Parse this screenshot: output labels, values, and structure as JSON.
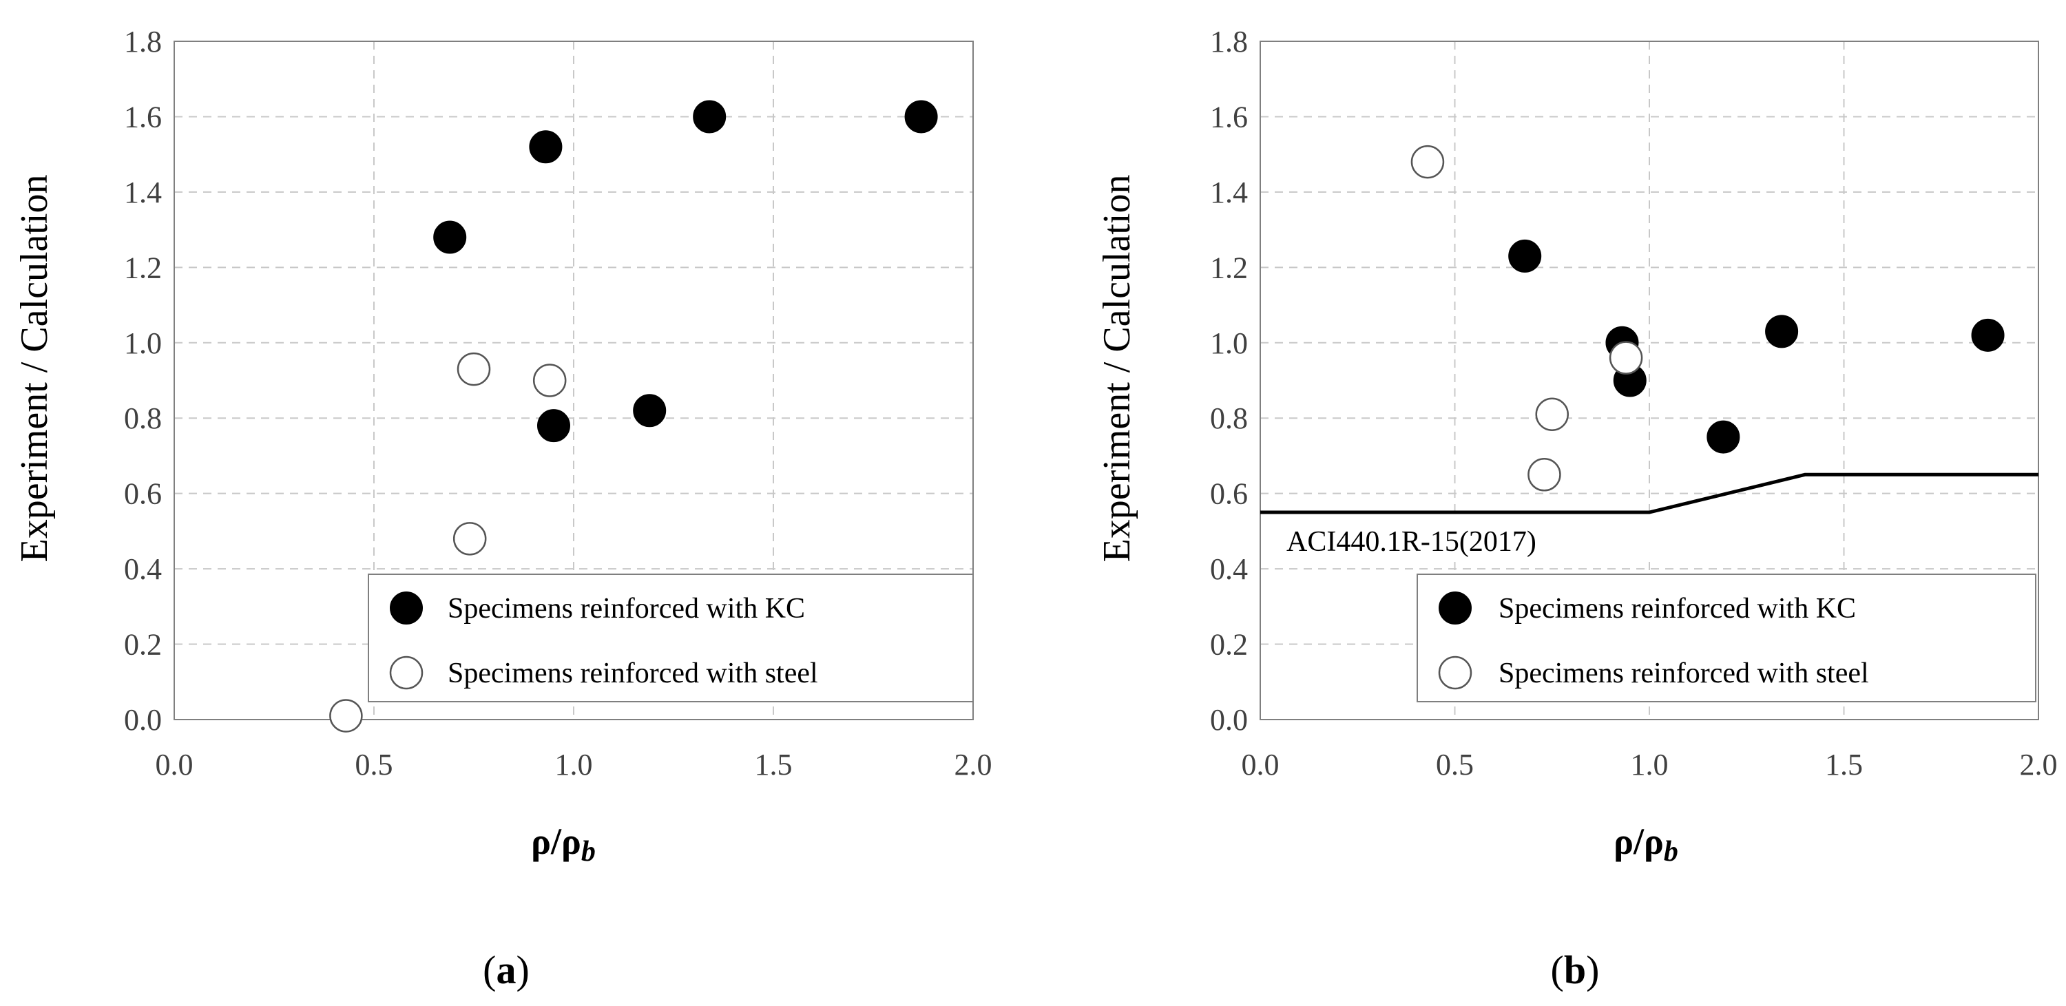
{
  "chart_data": [
    {
      "type": "scatter",
      "panel_label": "(a)",
      "ylabel": "Experiment  / Calculation",
      "xlabel_main": "ρ/ρ",
      "xlabel_sub": "b",
      "xlim": [
        0.0,
        2.0
      ],
      "ylim": [
        0.0,
        1.8
      ],
      "xticks": [
        "0.0",
        "0.5",
        "1.0",
        "1.5",
        "2.0"
      ],
      "yticks": [
        "0.0",
        "0.2",
        "0.4",
        "0.6",
        "0.8",
        "1.0",
        "1.2",
        "1.4",
        "1.6",
        "1.8"
      ],
      "grid": true,
      "legend_position": "bottom-right",
      "series": [
        {
          "name": "Specimens reinforced with KC",
          "marker": "filled",
          "x": [
            0.69,
            0.93,
            0.95,
            1.19,
            1.34,
            1.87
          ],
          "y": [
            1.28,
            1.52,
            0.78,
            0.82,
            1.6,
            1.6
          ]
        },
        {
          "name": "Specimens reinforced with steel",
          "marker": "open",
          "x": [
            0.43,
            0.74,
            0.75,
            0.94
          ],
          "y": [
            0.01,
            0.48,
            0.93,
            0.9
          ]
        }
      ]
    },
    {
      "type": "scatter",
      "panel_label": "(b)",
      "ylabel": "Experiment  / Calculation",
      "xlabel_main": "ρ/ρ",
      "xlabel_sub": "b",
      "xlim": [
        0.0,
        2.0
      ],
      "ylim": [
        0.0,
        1.8
      ],
      "xticks": [
        "0.0",
        "0.5",
        "1.0",
        "1.5",
        "2.0"
      ],
      "yticks": [
        "0.0",
        "0.2",
        "0.4",
        "0.6",
        "0.8",
        "1.0",
        "1.2",
        "1.4",
        "1.6",
        "1.8"
      ],
      "grid": true,
      "legend_position": "bottom-right",
      "series": [
        {
          "name": "Specimens reinforced with KC",
          "marker": "filled",
          "x": [
            0.68,
            0.93,
            0.95,
            1.19,
            1.34,
            1.87
          ],
          "y": [
            1.23,
            1.0,
            0.9,
            0.75,
            1.03,
            1.02
          ]
        },
        {
          "name": "Specimens reinforced with steel",
          "marker": "open",
          "x": [
            0.43,
            0.73,
            0.75,
            0.94
          ],
          "y": [
            1.48,
            0.65,
            0.81,
            0.96
          ]
        }
      ],
      "reference_line": {
        "label": "ACI440.1R-15(2017)",
        "x": [
          0.0,
          1.0,
          1.4,
          2.0
        ],
        "y": [
          0.55,
          0.55,
          0.65,
          0.65
        ]
      }
    }
  ]
}
